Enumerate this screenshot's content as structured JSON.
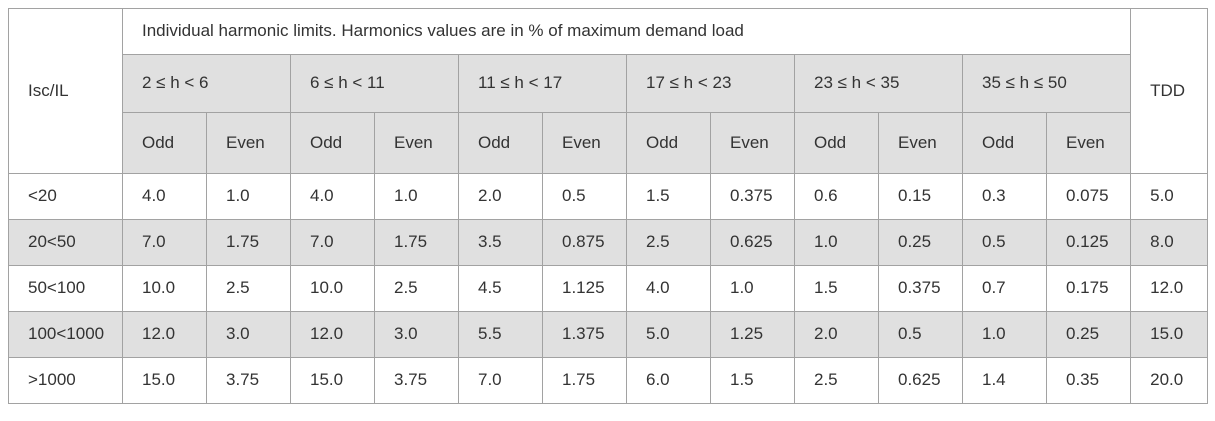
{
  "chart_data": {
    "type": "table",
    "title": "Individual harmonic limits. Harmonics values are in % of maximum demand load",
    "corner_header": "Isc/IL",
    "tdd_header": "TDD",
    "harmonic_ranges": [
      "2 ≤ h < 6",
      "6 ≤ h < 11",
      "11 ≤ h < 17",
      "17 ≤ h < 23",
      "23 ≤ h < 35",
      "35 ≤ h ≤ 50"
    ],
    "subheaders": [
      "Odd",
      "Even"
    ],
    "rows": [
      {
        "isc_il": "<20",
        "values": [
          "4.0",
          "1.0",
          "4.0",
          "1.0",
          "2.0",
          "0.5",
          "1.5",
          "0.375",
          "0.6",
          "0.15",
          "0.3",
          "0.075"
        ],
        "tdd": "5.0",
        "shaded": false
      },
      {
        "isc_il": "20<50",
        "values": [
          "7.0",
          "1.75",
          "7.0",
          "1.75",
          "3.5",
          "0.875",
          "2.5",
          "0.625",
          "1.0",
          "0.25",
          "0.5",
          "0.125"
        ],
        "tdd": "8.0",
        "shaded": true
      },
      {
        "isc_il": "50<100",
        "values": [
          "10.0",
          "2.5",
          "10.0",
          "2.5",
          "4.5",
          "1.125",
          "4.0",
          "1.0",
          "1.5",
          "0.375",
          "0.7",
          "0.175"
        ],
        "tdd": "12.0",
        "shaded": false
      },
      {
        "isc_il": "100<1000",
        "values": [
          "12.0",
          "3.0",
          "12.0",
          "3.0",
          "5.5",
          "1.375",
          "5.0",
          "1.25",
          "2.0",
          "0.5",
          "1.0",
          "0.25"
        ],
        "tdd": "15.0",
        "shaded": true
      },
      {
        "isc_il": ">1000",
        "values": [
          "15.0",
          "3.75",
          "15.0",
          "3.75",
          "7.0",
          "1.75",
          "6.0",
          "1.5",
          "2.5",
          "0.625",
          "1.4",
          "0.35"
        ],
        "tdd": "20.0",
        "shaded": false
      }
    ],
    "layout": {
      "columns_per_range": 2,
      "num_ranges": 6,
      "header_rows_shaded": true,
      "alternate_row_shading": true
    }
  },
  "colors": {
    "shaded_bg": "#e0e0e0",
    "border": "#a2a2a2",
    "text": "#333333",
    "background": "#ffffff"
  }
}
